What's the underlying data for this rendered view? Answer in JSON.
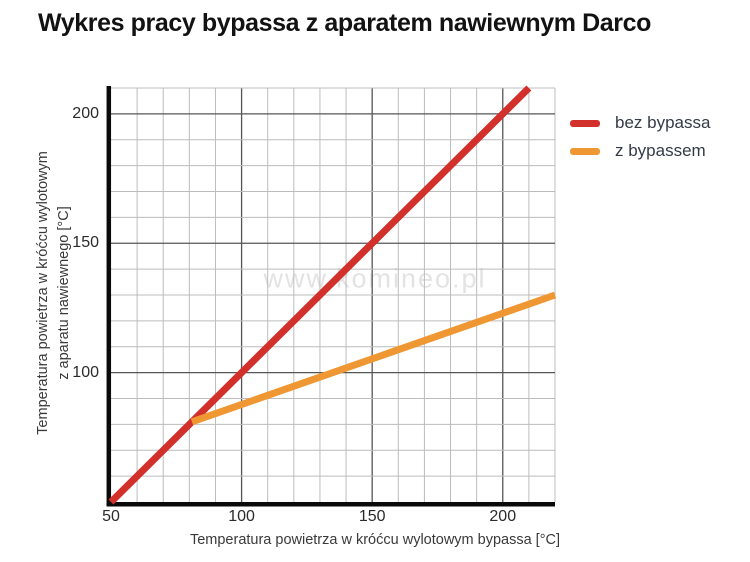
{
  "page": {
    "watermark": "www.komineo.pl"
  },
  "chart_data": {
    "type": "line",
    "title": "Wykres pracy bypassa z aparatem nawiewnym Darco",
    "xlabel": "Temperatura powietrza w króćcu wylotowym bypassa [°C]",
    "ylabel": "Temperatura powietrza w króćcu wylotowym z aparatu nawiewnego [°C]",
    "ylabel_lines": [
      "Temperatura powietrza w króćcu wylotowym",
      "z aparatu nawiewnego [°C]"
    ],
    "xlim": [
      50,
      220
    ],
    "ylim": [
      50,
      210
    ],
    "x_ticks": [
      50,
      100,
      150,
      200
    ],
    "y_ticks": [
      100,
      150,
      200
    ],
    "minor_grid_step": 10,
    "major_grid_step": 50,
    "grid": true,
    "legend_position": "top-right",
    "watermark": "www.komineo.pl",
    "colors": {
      "axis": "#0a0a0a",
      "grid_minor": "#bcbcbc",
      "grid_major": "#565656",
      "series_red": "#d2302b",
      "series_orange": "#ef9732"
    },
    "series": [
      {
        "name": "bez bypassa",
        "color": "#d2302b",
        "points": [
          [
            50,
            50
          ],
          [
            210,
            210
          ]
        ]
      },
      {
        "name": "z bypassem",
        "color": "#ef9732",
        "points": [
          [
            81,
            81
          ],
          [
            220,
            130
          ]
        ]
      }
    ]
  }
}
